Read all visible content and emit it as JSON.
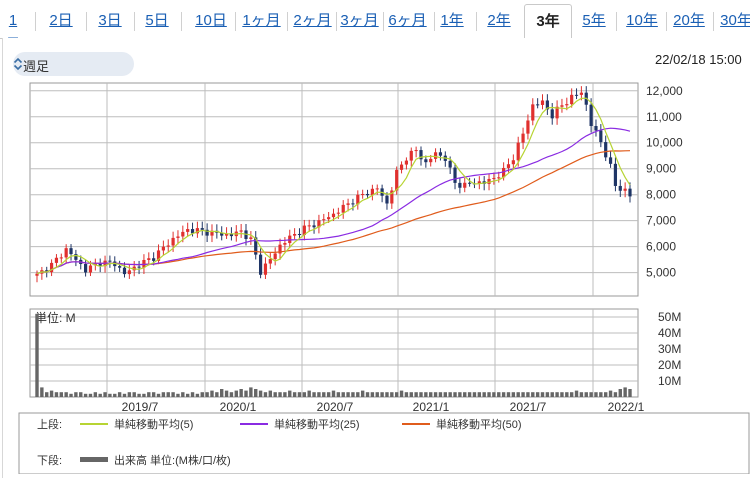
{
  "tabs": [
    {
      "label": "1日",
      "active": false
    },
    {
      "label": "2日",
      "active": false
    },
    {
      "label": "3日",
      "active": false
    },
    {
      "label": "5日",
      "active": false
    },
    {
      "label": "10日",
      "active": false
    },
    {
      "label": "1ヶ月",
      "active": false
    },
    {
      "label": "2ヶ月",
      "active": false
    },
    {
      "label": "3ヶ月",
      "active": false
    },
    {
      "label": "6ヶ月",
      "active": false
    },
    {
      "label": "1年",
      "active": false
    },
    {
      "label": "2年",
      "active": false
    },
    {
      "label": "3年",
      "active": true
    },
    {
      "label": "5年",
      "active": false
    },
    {
      "label": "10年",
      "active": false
    },
    {
      "label": "20年",
      "active": false
    },
    {
      "label": "30年",
      "active": false
    }
  ],
  "period_select": {
    "value": "週足"
  },
  "timestamp": "22/02/18 15:00",
  "colors": {
    "up": "#e0302e",
    "down": "#1f3566",
    "ma5": "#b7d433",
    "ma25": "#8a2be2",
    "ma50": "#e05c1c",
    "volume": "#666666",
    "grid": "#bdbdbd"
  },
  "chart_data": {
    "type": "candlestick",
    "x_tick_labels": [
      "2019/7",
      "2020/1",
      "2020/7",
      "2021/1",
      "2021/7",
      "2022/1"
    ],
    "x_tick_weeks": [
      20,
      46,
      72,
      98,
      124,
      150
    ],
    "price_axis": {
      "ylim": [
        4100,
        12300
      ],
      "ticks": [
        5000,
        6000,
        7000,
        8000,
        9000,
        10000,
        11000,
        12000
      ],
      "tick_labels": [
        "5,000",
        "6,000",
        "7,000",
        "8,000",
        "9,000",
        "10,000",
        "11,000",
        "12,000"
      ]
    },
    "volume_axis": {
      "unit_label": "単位: M",
      "ylim": [
        0,
        55
      ],
      "ticks": [
        10,
        20,
        30,
        40,
        50
      ],
      "tick_labels": [
        "10M",
        "20M",
        "30M",
        "40M",
        "50M"
      ]
    },
    "close_anchors": [
      [
        0,
        4900
      ],
      [
        3,
        5300
      ],
      [
        6,
        5900
      ],
      [
        8,
        5500
      ],
      [
        10,
        5100
      ],
      [
        13,
        5400
      ],
      [
        16,
        5350
      ],
      [
        18,
        4950
      ],
      [
        20,
        5200
      ],
      [
        24,
        5600
      ],
      [
        28,
        6300
      ],
      [
        31,
        6650
      ],
      [
        34,
        6600
      ],
      [
        37,
        6500
      ],
      [
        40,
        6450
      ],
      [
        42,
        6600
      ],
      [
        44,
        6250
      ],
      [
        46,
        5050
      ],
      [
        48,
        5500
      ],
      [
        50,
        6050
      ],
      [
        52,
        6350
      ],
      [
        55,
        6700
      ],
      [
        58,
        6950
      ],
      [
        61,
        7250
      ],
      [
        64,
        7650
      ],
      [
        67,
        8000
      ],
      [
        70,
        8250
      ],
      [
        72,
        7650
      ],
      [
        74,
        8850
      ],
      [
        76,
        9450
      ],
      [
        78,
        9700
      ],
      [
        80,
        9200
      ],
      [
        82,
        9600
      ],
      [
        84,
        9400
      ],
      [
        86,
        8450
      ],
      [
        88,
        8350
      ],
      [
        90,
        8500
      ],
      [
        92,
        8450
      ],
      [
        94,
        8650
      ],
      [
        96,
        8900
      ],
      [
        98,
        9450
      ],
      [
        100,
        10350
      ],
      [
        102,
        11450
      ],
      [
        104,
        11550
      ],
      [
        106,
        11050
      ],
      [
        108,
        11450
      ],
      [
        110,
        11750
      ],
      [
        112,
        11950
      ],
      [
        113,
        11450
      ],
      [
        114,
        10700
      ],
      [
        116,
        10050
      ],
      [
        118,
        9050
      ],
      [
        119,
        8350
      ],
      [
        121,
        8150
      ],
      [
        122,
        7950
      ]
    ],
    "x_weeks": 123,
    "volume_values": [
      52,
      6,
      3,
      4,
      3,
      3,
      3,
      2,
      3,
      3,
      2,
      2,
      3,
      2,
      3,
      2,
      2,
      3,
      2,
      3,
      3,
      2,
      2,
      3,
      3,
      2,
      3,
      3,
      3,
      2,
      3,
      2,
      3,
      2,
      3,
      3,
      4,
      3,
      5,
      4,
      3,
      4,
      5,
      4,
      6,
      5,
      4,
      3,
      4,
      3,
      3,
      3,
      4,
      3,
      3,
      3,
      4,
      3,
      3,
      3,
      3,
      4,
      3,
      3,
      3,
      3,
      3,
      4,
      3,
      3,
      3,
      3,
      3,
      3,
      3,
      4,
      3,
      3,
      3,
      3,
      3,
      3,
      3,
      3,
      3,
      3,
      3,
      3,
      3,
      3,
      3,
      3,
      3,
      3,
      3,
      3,
      3,
      3,
      3,
      3,
      3,
      3,
      3,
      3,
      3,
      3,
      3,
      3,
      3,
      3,
      3,
      4,
      3,
      3,
      3,
      3,
      3,
      3,
      4,
      3,
      5,
      6,
      5
    ]
  },
  "legend": {
    "upper_label": "上段:",
    "lower_label": "下段:",
    "items": [
      {
        "name": "単純移動平均(5)",
        "color": "#b7d433"
      },
      {
        "name": "単純移動平均(25)",
        "color": "#8a2be2"
      },
      {
        "name": "単純移動平均(50)",
        "color": "#e05c1c"
      }
    ],
    "volume_item": "出来高 単位:(M株/口/枚)"
  }
}
